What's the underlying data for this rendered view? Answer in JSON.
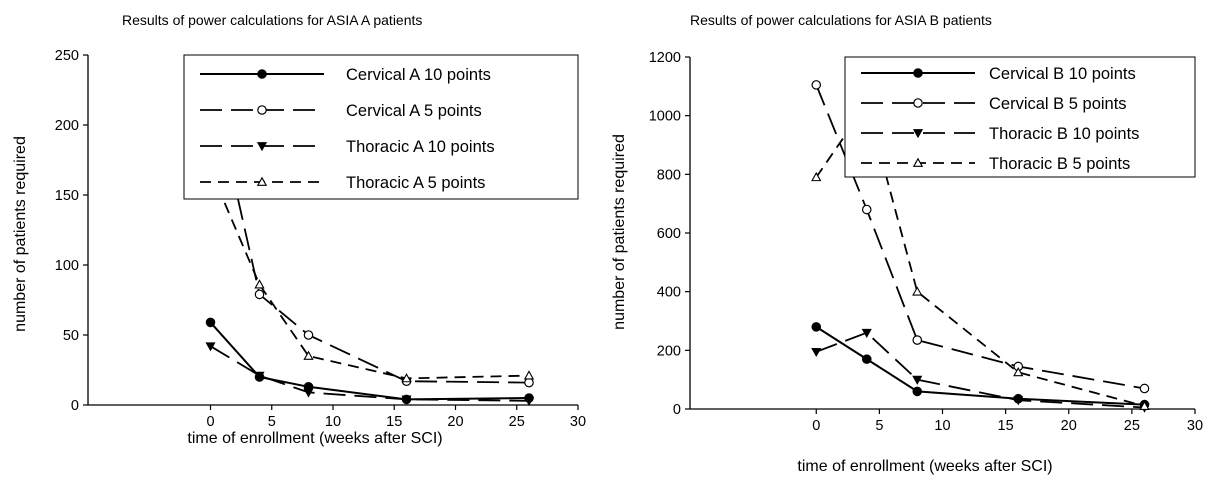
{
  "chart_data": [
    {
      "type": "line",
      "title": "Results of power calculations for ASIA A patients",
      "xlabel": "time of enrollment (weeks after SCI)",
      "ylabel": "number of patients required",
      "xlim": [
        -10,
        30
      ],
      "ylim": [
        0,
        250
      ],
      "x_ticks": [
        0,
        5,
        10,
        15,
        20,
        25,
        30
      ],
      "y_ticks": [
        0,
        50,
        100,
        150,
        200,
        250
      ],
      "x": [
        0,
        4,
        8,
        16,
        26
      ],
      "grid": false,
      "legend_position": "top-right",
      "series": [
        {
          "name": "Cervical A 10 points",
          "values": [
            59,
            20,
            13,
            4,
            5
          ],
          "dash": "solid",
          "marker": "circle-filled"
        },
        {
          "name": "Cervical A 5 points",
          "values": [
            234,
            79,
            50,
            17,
            16
          ],
          "dash": "long",
          "marker": "circle-open"
        },
        {
          "name": "Thoracic A 10 points",
          "values": [
            42,
            21,
            9,
            4,
            3
          ],
          "dash": "long",
          "marker": "triangle-down-filled"
        },
        {
          "name": "Thoracic A 5 points",
          "values": [
            168,
            86,
            35,
            19,
            21
          ],
          "dash": "medium",
          "marker": "triangle-up-open"
        }
      ]
    },
    {
      "type": "line",
      "title": "Results of power calculations for ASIA  B patients",
      "xlabel": "time of enrollment (weeks after SCI)",
      "ylabel": "number of patients required",
      "xlim": [
        -10,
        30
      ],
      "ylim": [
        0,
        1200
      ],
      "x_ticks": [
        0,
        5,
        10,
        15,
        20,
        25,
        30
      ],
      "y_ticks": [
        0,
        200,
        400,
        600,
        800,
        1000,
        1200
      ],
      "x": [
        0,
        4,
        8,
        16,
        26
      ],
      "grid": false,
      "legend_position": "top-right",
      "series": [
        {
          "name": "Cervical B 10 points",
          "values": [
            280,
            170,
            60,
            35,
            15
          ],
          "dash": "solid",
          "marker": "circle-filled"
        },
        {
          "name": "Cervical B 5 points",
          "values": [
            1105,
            680,
            235,
            145,
            70
          ],
          "dash": "long",
          "marker": "circle-open"
        },
        {
          "name": "Thoracic B 10 points",
          "values": [
            195,
            260,
            100,
            30,
            5
          ],
          "dash": "long",
          "marker": "triangle-down-filled"
        },
        {
          "name": "Thoracic B 5 points",
          "values": [
            790,
            1040,
            400,
            125,
            10
          ],
          "dash": "medium",
          "marker": "triangle-up-open"
        }
      ]
    }
  ]
}
